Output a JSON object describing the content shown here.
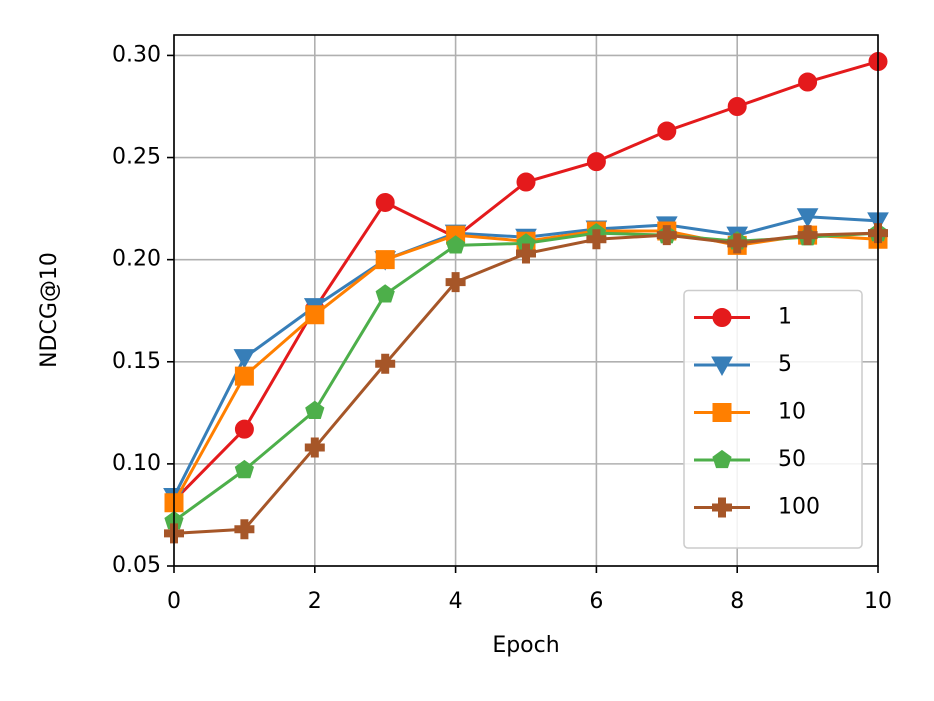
{
  "chart_data": {
    "type": "line",
    "xlabel": "Epoch",
    "ylabel": "NDCG@10",
    "x": [
      0,
      1,
      2,
      3,
      4,
      5,
      6,
      7,
      8,
      9,
      10
    ],
    "xlim": [
      0,
      10
    ],
    "xticks": [
      0,
      2,
      4,
      6,
      8,
      10
    ],
    "ylim": [
      0.05,
      0.31
    ],
    "yticks": [
      0.05,
      {
        "value": 0.1,
        "label": "0.10"
      },
      0.15,
      {
        "value": 0.2,
        "label": "0.20"
      },
      0.25,
      {
        "value": 0.3,
        "label": "0.30"
      }
    ],
    "grid": true,
    "legend": "lower right",
    "series": [
      {
        "name": "1",
        "color": "#e41a1c",
        "marker": "circle",
        "values": [
          0.082,
          0.117,
          0.176,
          0.228,
          0.211,
          0.238,
          0.248,
          0.263,
          0.275,
          0.287,
          0.297
        ]
      },
      {
        "name": "5",
        "color": "#377eb8",
        "marker": "triangle-down",
        "values": [
          0.084,
          0.152,
          0.177,
          0.2,
          0.213,
          0.211,
          0.215,
          0.217,
          0.212,
          0.221,
          0.219
        ]
      },
      {
        "name": "10",
        "color": "#ff7f00",
        "marker": "square",
        "values": [
          0.081,
          0.143,
          0.173,
          0.2,
          0.212,
          0.209,
          0.214,
          0.214,
          0.207,
          0.212,
          0.21
        ]
      },
      {
        "name": "50",
        "color": "#4daf4a",
        "marker": "pentagon",
        "values": [
          0.072,
          0.097,
          0.126,
          0.183,
          0.207,
          0.208,
          0.213,
          0.212,
          0.209,
          0.211,
          0.213
        ]
      },
      {
        "name": "100",
        "color": "#a65628",
        "marker": "plus",
        "values": [
          0.066,
          0.068,
          0.108,
          0.149,
          0.189,
          0.203,
          0.21,
          0.212,
          0.208,
          0.212,
          0.213
        ]
      }
    ]
  }
}
